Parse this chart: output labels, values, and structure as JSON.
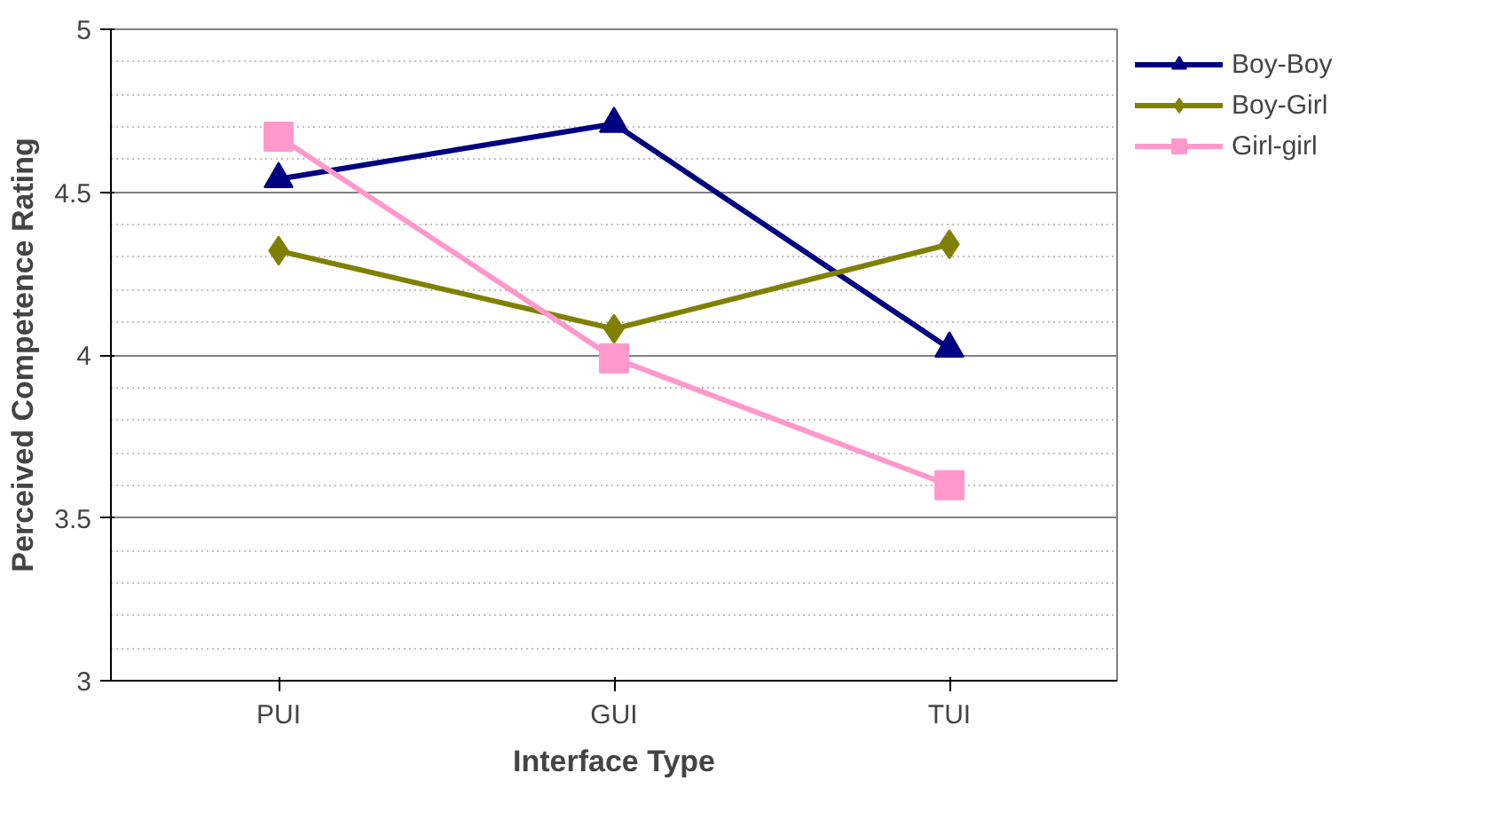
{
  "chart_data": {
    "type": "line",
    "xlabel": "Interface Type",
    "ylabel": "Perceived Competence Rating",
    "categories": [
      "PUI",
      "GUI",
      "TUI"
    ],
    "series": [
      {
        "name": "Boy-Boy",
        "color": "#000080",
        "marker": "triangle",
        "values": [
          4.54,
          4.71,
          4.02
        ]
      },
      {
        "name": "Boy-Girl",
        "color": "#808000",
        "marker": "diamond",
        "values": [
          4.32,
          4.08,
          4.34
        ]
      },
      {
        "name": "Girl-girl",
        "color": "#ff99cc",
        "marker": "square",
        "values": [
          4.67,
          3.99,
          3.6
        ]
      }
    ],
    "ylim": [
      3,
      5
    ],
    "yticks": [
      3,
      3.5,
      4,
      4.5,
      5
    ],
    "grid": "y",
    "legend": "top right"
  }
}
